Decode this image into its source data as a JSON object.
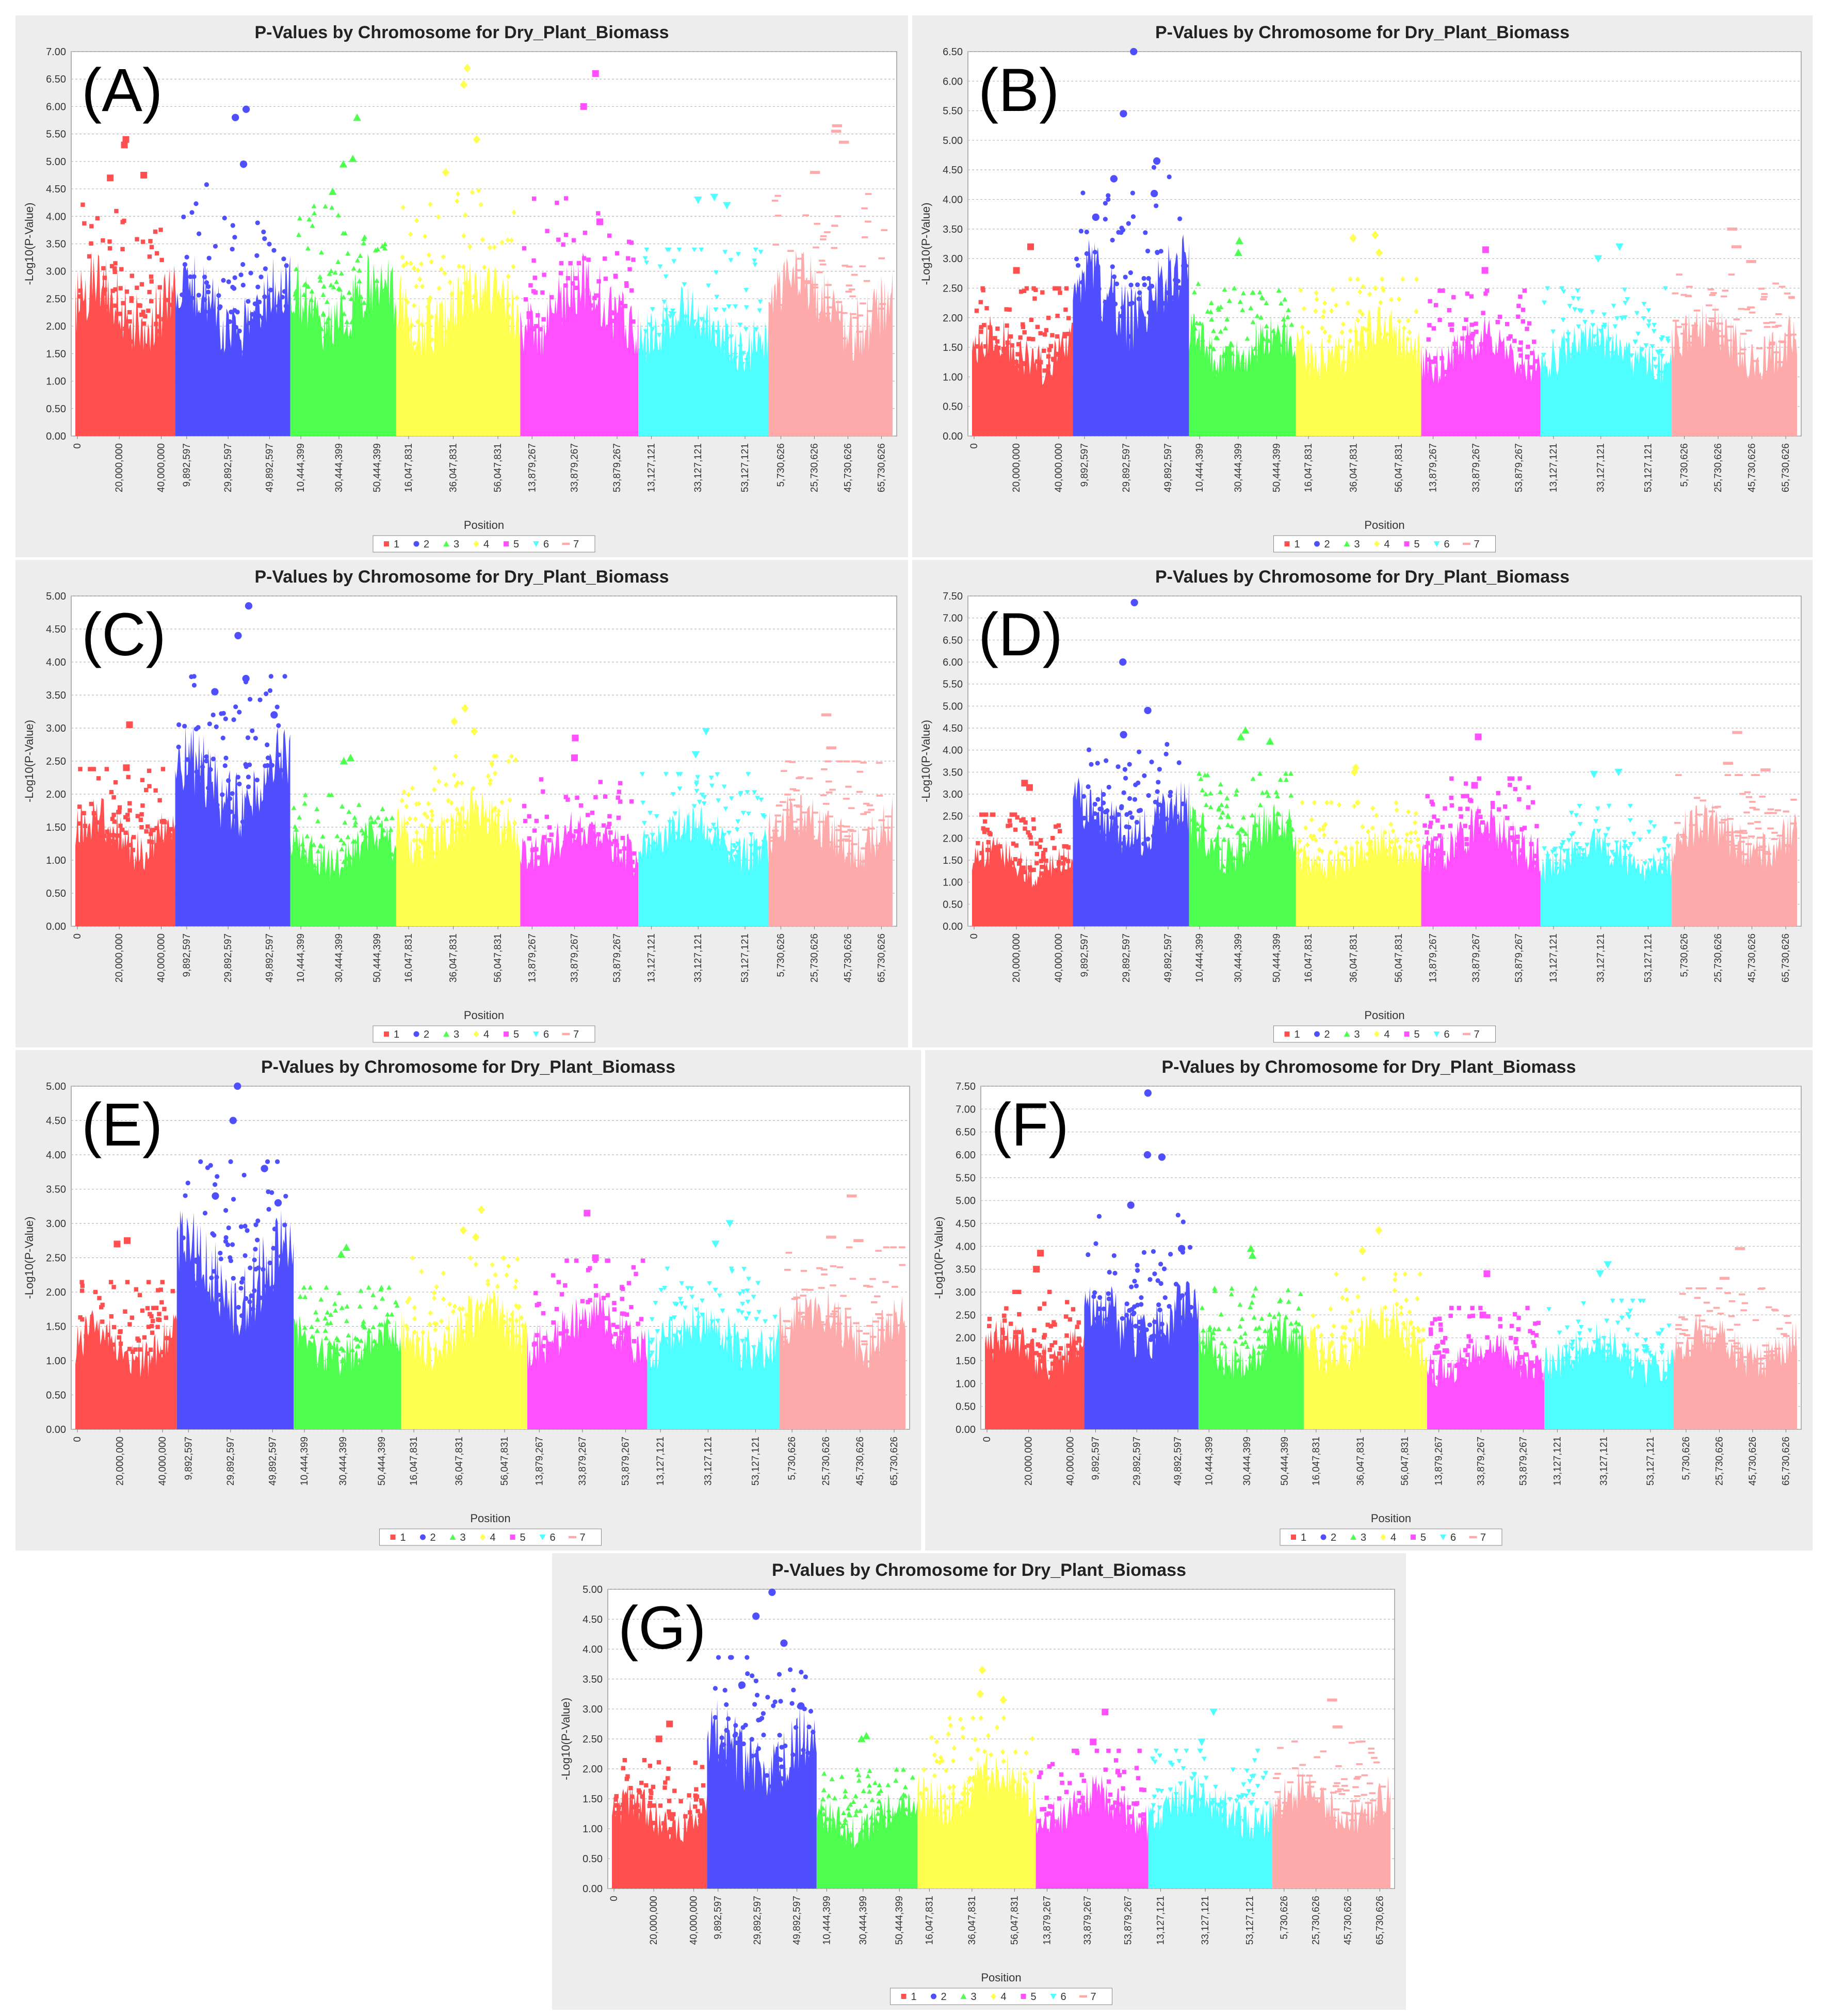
{
  "figure": {
    "colors": {
      "chr1": "#ff4f4f",
      "chr2": "#4f4fff",
      "chr3": "#4fff4f",
      "chr4": "#ffff4f",
      "chr5": "#ff4fff",
      "chr6": "#4fffff",
      "chr7": "#ffaaaa"
    }
  },
  "chart_data": [
    {
      "id": "A",
      "panel_label": "(A)",
      "type": "scatter",
      "title": "P-Values by Chromosome for Dry_Plant_Biomass",
      "xlabel": "Position",
      "ylabel": "-Log10(P-Value)",
      "ylim": [
        0,
        7.0
      ],
      "yticks": [
        "0.00",
        "0.50",
        "1.00",
        "1.50",
        "2.00",
        "2.50",
        "3.00",
        "3.50",
        "4.00",
        "4.50",
        "5.00",
        "5.50",
        "6.00",
        "6.50",
        "7.00"
      ],
      "xticks": [
        "0",
        "20,000,000",
        "40,000,000",
        "9,892,597",
        "29,892,597",
        "49,892,597",
        "10,444,399",
        "30,444,399",
        "50,444,399",
        "16,047,831",
        "36,047,831",
        "56,047,831",
        "13,879,267",
        "33,879,267",
        "53,879,267",
        "13,127,121",
        "33,127,121",
        "53,127,121",
        "5,730,626",
        "25,730,626",
        "45,730,626",
        "65,730,626"
      ],
      "legend": [
        "1",
        "2",
        "3",
        "4",
        "5",
        "6",
        "7"
      ],
      "legend_position": "bottom",
      "series": [
        {
          "name": "1",
          "max": 5.4,
          "peaks": [
            5.4,
            5.3,
            4.75,
            4.7
          ]
        },
        {
          "name": "2",
          "max": 5.95,
          "peaks": [
            5.95,
            5.8,
            4.95
          ]
        },
        {
          "name": "3",
          "max": 5.8,
          "peaks": [
            5.8,
            4.95,
            5.05,
            4.45
          ]
        },
        {
          "name": "4",
          "max": 6.7,
          "peaks": [
            6.7,
            6.4,
            5.4,
            4.8
          ]
        },
        {
          "name": "5",
          "max": 6.6,
          "peaks": [
            6.6,
            6.0,
            3.9
          ]
        },
        {
          "name": "6",
          "max": 4.35,
          "peaks": [
            4.35,
            4.3,
            4.2
          ]
        },
        {
          "name": "7",
          "max": 5.65,
          "peaks": [
            5.65,
            5.55,
            5.35,
            4.8
          ]
        }
      ]
    },
    {
      "id": "B",
      "panel_label": "(B)",
      "type": "scatter",
      "title": "P-Values by Chromosome for Dry_Plant_Biomass",
      "xlabel": "Position",
      "ylabel": "-Log10(P-Value)",
      "ylim": [
        0,
        6.5
      ],
      "yticks": [
        "0.00",
        "0.50",
        "1.00",
        "1.50",
        "2.00",
        "2.50",
        "3.00",
        "3.50",
        "4.00",
        "4.50",
        "5.00",
        "5.50",
        "6.00",
        "6.50"
      ],
      "xticks": [
        "0",
        "20,000,000",
        "40,000,000",
        "9,892,597",
        "29,892,597",
        "49,892,597",
        "10,444,399",
        "30,444,399",
        "50,444,399",
        "16,047,831",
        "36,047,831",
        "56,047,831",
        "13,879,267",
        "33,879,267",
        "53,879,267",
        "13,127,121",
        "33,127,121",
        "53,127,121",
        "5,730,626",
        "25,730,626",
        "45,730,626",
        "65,730,626"
      ],
      "legend": [
        "1",
        "2",
        "3",
        "4",
        "5",
        "6",
        "7"
      ],
      "legend_position": "bottom",
      "series": [
        {
          "name": "1",
          "max": 3.2,
          "peaks": [
            3.2,
            2.8
          ]
        },
        {
          "name": "2",
          "max": 6.5,
          "peaks": [
            6.5,
            5.45,
            4.65,
            4.35,
            4.1,
            3.7
          ]
        },
        {
          "name": "3",
          "max": 3.3,
          "peaks": [
            3.3,
            3.1
          ]
        },
        {
          "name": "4",
          "max": 3.4,
          "peaks": [
            3.4,
            3.35,
            3.1
          ]
        },
        {
          "name": "5",
          "max": 3.15,
          "peaks": [
            3.15,
            2.8
          ]
        },
        {
          "name": "6",
          "max": 3.2,
          "peaks": [
            3.2,
            3.0
          ]
        },
        {
          "name": "7",
          "max": 3.5,
          "peaks": [
            3.5,
            3.2,
            2.95
          ]
        }
      ]
    },
    {
      "id": "C",
      "panel_label": "(C)",
      "type": "scatter",
      "title": "P-Values by Chromosome for Dry_Plant_Biomass",
      "xlabel": "Position",
      "ylabel": "-Log10(P-Value)",
      "ylim": [
        0,
        5.0
      ],
      "yticks": [
        "0.00",
        "0.50",
        "1.00",
        "1.50",
        "2.00",
        "2.50",
        "3.00",
        "3.50",
        "4.00",
        "4.50",
        "5.00"
      ],
      "xticks": [
        "0",
        "20,000,000",
        "40,000,000",
        "9,892,597",
        "29,892,597",
        "49,892,597",
        "10,444,399",
        "30,444,399",
        "50,444,399",
        "16,047,831",
        "36,047,831",
        "56,047,831",
        "13,879,267",
        "33,879,267",
        "53,879,267",
        "13,127,121",
        "33,127,121",
        "53,127,121",
        "5,730,626",
        "25,730,626",
        "45,730,626",
        "65,730,626"
      ],
      "legend": [
        "1",
        "2",
        "3",
        "4",
        "5",
        "6",
        "7"
      ],
      "legend_position": "bottom",
      "series": [
        {
          "name": "1",
          "max": 3.05,
          "peaks": [
            3.05,
            2.4
          ]
        },
        {
          "name": "2",
          "max": 4.85,
          "peaks": [
            4.85,
            4.4,
            3.75,
            3.55,
            3.2
          ]
        },
        {
          "name": "3",
          "max": 2.55,
          "peaks": [
            2.55,
            2.5
          ]
        },
        {
          "name": "4",
          "max": 3.3,
          "peaks": [
            3.3,
            3.1,
            2.95
          ]
        },
        {
          "name": "5",
          "max": 2.85,
          "peaks": [
            2.85,
            2.55
          ]
        },
        {
          "name": "6",
          "max": 2.95,
          "peaks": [
            2.95,
            2.6
          ]
        },
        {
          "name": "7",
          "max": 3.2,
          "peaks": [
            3.2,
            2.7
          ]
        }
      ]
    },
    {
      "id": "D",
      "panel_label": "(D)",
      "type": "scatter",
      "title": "P-Values by Chromosome for Dry_Plant_Biomass",
      "xlabel": "Position",
      "ylabel": "-Log10(P-Value)",
      "ylim": [
        0,
        7.5
      ],
      "yticks": [
        "0.00",
        "0.50",
        "1.00",
        "1.50",
        "2.00",
        "2.50",
        "3.00",
        "3.50",
        "4.00",
        "4.50",
        "5.00",
        "5.50",
        "6.00",
        "6.50",
        "7.00",
        "7.50"
      ],
      "xticks": [
        "0",
        "20,000,000",
        "40,000,000",
        "9,892,597",
        "29,892,597",
        "49,892,597",
        "10,444,399",
        "30,444,399",
        "50,444,399",
        "16,047,831",
        "36,047,831",
        "56,047,831",
        "13,879,267",
        "33,879,267",
        "53,879,267",
        "13,127,121",
        "33,127,121",
        "53,127,121",
        "5,730,626",
        "25,730,626",
        "45,730,626",
        "65,730,626"
      ],
      "legend": [
        "1",
        "2",
        "3",
        "4",
        "5",
        "6",
        "7"
      ],
      "legend_position": "bottom",
      "series": [
        {
          "name": "1",
          "max": 3.25,
          "peaks": [
            3.25,
            3.15
          ]
        },
        {
          "name": "2",
          "max": 7.35,
          "peaks": [
            7.35,
            6.0,
            4.9,
            4.35
          ]
        },
        {
          "name": "3",
          "max": 4.45,
          "peaks": [
            4.45,
            4.3,
            4.2
          ]
        },
        {
          "name": "4",
          "max": 3.6,
          "peaks": [
            3.6,
            3.5
          ]
        },
        {
          "name": "5",
          "max": 4.3,
          "peaks": [
            4.3,
            3.2
          ]
        },
        {
          "name": "6",
          "max": 3.5,
          "peaks": [
            3.5,
            3.45
          ]
        },
        {
          "name": "7",
          "max": 4.4,
          "peaks": [
            4.4,
            3.7,
            3.55
          ]
        }
      ]
    },
    {
      "id": "E",
      "panel_label": "(E)",
      "type": "scatter",
      "title": "P-Values by Chromosome for Dry_Plant_Biomass",
      "xlabel": "Position",
      "ylabel": "-Log10(P-Value)",
      "ylim": [
        0,
        5.0
      ],
      "yticks": [
        "0.00",
        "0.50",
        "1.00",
        "1.50",
        "2.00",
        "2.50",
        "3.00",
        "3.50",
        "4.00",
        "4.50",
        "5.00"
      ],
      "xticks": [
        "0",
        "20,000,000",
        "40,000,000",
        "9,892,597",
        "29,892,597",
        "49,892,597",
        "10,444,399",
        "30,444,399",
        "50,444,399",
        "16,047,831",
        "36,047,831",
        "56,047,831",
        "13,879,267",
        "33,879,267",
        "53,879,267",
        "13,127,121",
        "33,127,121",
        "53,127,121",
        "5,730,626",
        "25,730,626",
        "45,730,626",
        "65,730,626"
      ],
      "legend": [
        "1",
        "2",
        "3",
        "4",
        "5",
        "6",
        "7"
      ],
      "legend_position": "bottom",
      "series": [
        {
          "name": "1",
          "max": 2.75,
          "peaks": [
            2.75,
            2.7
          ]
        },
        {
          "name": "2",
          "max": 5.0,
          "peaks": [
            5.0,
            4.5,
            3.8,
            3.4,
            3.3
          ]
        },
        {
          "name": "3",
          "max": 2.65,
          "peaks": [
            2.65,
            2.55
          ]
        },
        {
          "name": "4",
          "max": 3.2,
          "peaks": [
            3.2,
            2.9,
            2.8
          ]
        },
        {
          "name": "5",
          "max": 3.15,
          "peaks": [
            3.15,
            2.5
          ]
        },
        {
          "name": "6",
          "max": 3.0,
          "peaks": [
            3.0,
            2.7
          ]
        },
        {
          "name": "7",
          "max": 3.4,
          "peaks": [
            3.4,
            2.8,
            2.75
          ]
        }
      ]
    },
    {
      "id": "F",
      "panel_label": "(F)",
      "type": "scatter",
      "title": "P-Values by Chromosome for Dry_Plant_Biomass",
      "xlabel": "Position",
      "ylabel": "-Log10(P-Value)",
      "ylim": [
        0,
        7.5
      ],
      "yticks": [
        "0.00",
        "0.50",
        "1.00",
        "1.50",
        "2.00",
        "2.50",
        "3.00",
        "3.50",
        "4.00",
        "4.50",
        "5.00",
        "5.50",
        "6.00",
        "6.50",
        "7.00",
        "7.50"
      ],
      "xticks": [
        "0",
        "20,000,000",
        "40,000,000",
        "9,892,597",
        "29,892,597",
        "49,892,597",
        "10,444,399",
        "30,444,399",
        "50,444,399",
        "16,047,831",
        "36,047,831",
        "56,047,831",
        "13,879,267",
        "33,879,267",
        "53,879,267",
        "13,127,121",
        "33,127,121",
        "53,127,121",
        "5,730,626",
        "25,730,626",
        "45,730,626",
        "65,730,626"
      ],
      "legend": [
        "1",
        "2",
        "3",
        "4",
        "5",
        "6",
        "7"
      ],
      "legend_position": "bottom",
      "series": [
        {
          "name": "1",
          "max": 3.85,
          "peaks": [
            3.85,
            3.5
          ]
        },
        {
          "name": "2",
          "max": 7.35,
          "peaks": [
            7.35,
            6.0,
            5.95,
            4.9,
            3.95
          ]
        },
        {
          "name": "3",
          "max": 3.95,
          "peaks": [
            3.95,
            3.8
          ]
        },
        {
          "name": "4",
          "max": 4.35,
          "peaks": [
            4.35,
            3.9
          ]
        },
        {
          "name": "5",
          "max": 3.4,
          "peaks": [
            3.4,
            2.5
          ]
        },
        {
          "name": "6",
          "max": 3.6,
          "peaks": [
            3.6,
            3.4
          ]
        },
        {
          "name": "7",
          "max": 3.95,
          "peaks": [
            3.95,
            3.3
          ]
        }
      ]
    },
    {
      "id": "G",
      "panel_label": "(G)",
      "type": "scatter",
      "title": "P-Values by Chromosome for Dry_Plant_Biomass",
      "xlabel": "Position",
      "ylabel": "-Log10(P-Value)",
      "ylim": [
        0,
        5.0
      ],
      "yticks": [
        "0.00",
        "0.50",
        "1.00",
        "1.50",
        "2.00",
        "2.50",
        "3.00",
        "3.50",
        "4.00",
        "4.50",
        "5.00"
      ],
      "xticks": [
        "0",
        "20,000,000",
        "40,000,000",
        "9,892,597",
        "29,892,597",
        "49,892,597",
        "10,444,399",
        "30,444,399",
        "50,444,399",
        "16,047,831",
        "36,047,831",
        "56,047,831",
        "13,879,267",
        "33,879,267",
        "53,879,267",
        "13,127,121",
        "33,127,121",
        "53,127,121",
        "5,730,626",
        "25,730,626",
        "45,730,626",
        "65,730,626"
      ],
      "legend": [
        "1",
        "2",
        "3",
        "4",
        "5",
        "6",
        "7"
      ],
      "legend_position": "bottom",
      "series": [
        {
          "name": "1",
          "max": 2.75,
          "peaks": [
            2.75,
            2.5
          ]
        },
        {
          "name": "2",
          "max": 4.95,
          "peaks": [
            4.95,
            4.55,
            4.1,
            3.4,
            3.05
          ]
        },
        {
          "name": "3",
          "max": 2.55,
          "peaks": [
            2.55,
            2.5
          ]
        },
        {
          "name": "4",
          "max": 3.65,
          "peaks": [
            3.65,
            3.25,
            3.15
          ]
        },
        {
          "name": "5",
          "max": 2.95,
          "peaks": [
            2.95,
            2.45
          ]
        },
        {
          "name": "6",
          "max": 2.95,
          "peaks": [
            2.95,
            2.45
          ]
        },
        {
          "name": "7",
          "max": 3.15,
          "peaks": [
            3.15,
            2.7
          ]
        }
      ]
    }
  ]
}
